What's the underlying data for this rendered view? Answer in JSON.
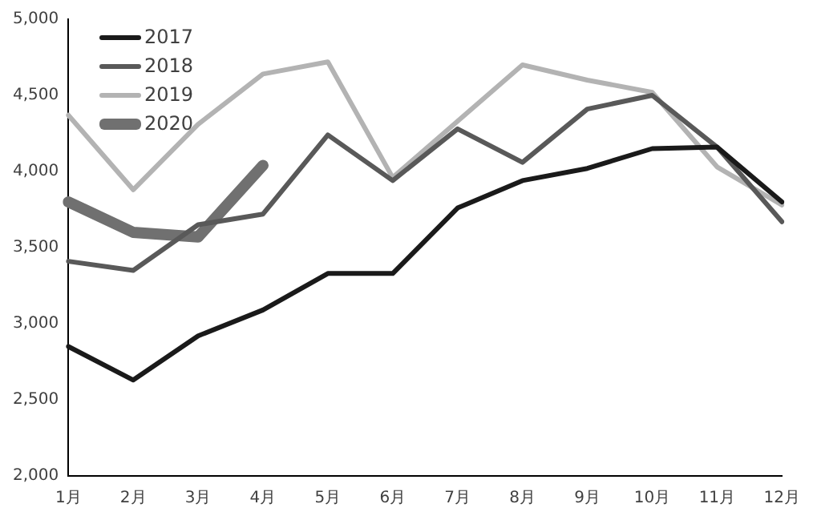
{
  "chart_data": {
    "type": "line",
    "categories": [
      "1月",
      "2月",
      "3月",
      "4月",
      "5月",
      "6月",
      "7月",
      "8月",
      "9月",
      "10月",
      "11月",
      "12月"
    ],
    "series": [
      {
        "name": "2017",
        "color": "#1a1a1a",
        "values": [
          2850,
          2630,
          2920,
          3090,
          3330,
          3330,
          3760,
          3940,
          4020,
          4150,
          4160,
          3800
        ]
      },
      {
        "name": "2018",
        "color": "#595959",
        "values": [
          3410,
          3350,
          3650,
          3720,
          4240,
          3940,
          4280,
          4060,
          4410,
          4500,
          4160,
          3670
        ]
      },
      {
        "name": "2019",
        "color": "#b3b3b3",
        "values": [
          4370,
          3880,
          4310,
          4640,
          4720,
          3960,
          4330,
          4700,
          4600,
          4520,
          4030,
          3780
        ]
      },
      {
        "name": "2020",
        "color": "#707070",
        "values": [
          3800,
          3600,
          3570,
          4040,
          null,
          null,
          null,
          null,
          null,
          null,
          null,
          null
        ]
      }
    ],
    "ylim": [
      2000,
      5000
    ],
    "yticks": [
      {
        "value": 2000,
        "label": "2,000"
      },
      {
        "value": 2500,
        "label": "2,500"
      },
      {
        "value": 3000,
        "label": "3,000"
      },
      {
        "value": 3500,
        "label": "3,500"
      },
      {
        "value": 4000,
        "label": "4,000"
      },
      {
        "value": 4500,
        "label": "4,500"
      },
      {
        "value": 5000,
        "label": "5,000"
      }
    ],
    "grid": false,
    "legend": "top left",
    "marker": "none",
    "line_style": "solid"
  }
}
